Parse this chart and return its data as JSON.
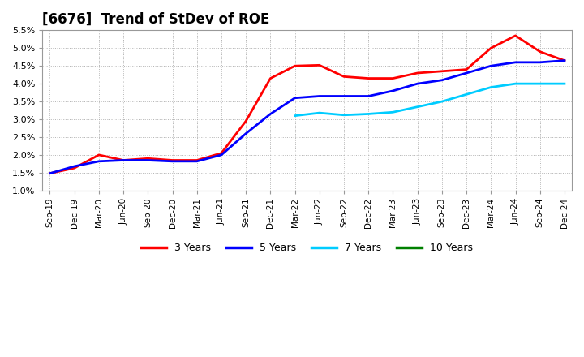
{
  "title": "[6676]  Trend of StDev of ROE",
  "title_fontsize": 12,
  "ylim": [
    0.01,
    0.055
  ],
  "yticks": [
    0.01,
    0.015,
    0.02,
    0.025,
    0.03,
    0.035,
    0.04,
    0.045,
    0.05,
    0.055
  ],
  "ytick_labels": [
    "1.0%",
    "1.5%",
    "2.0%",
    "2.5%",
    "3.0%",
    "3.5%",
    "4.0%",
    "4.5%",
    "5.0%",
    "5.5%"
  ],
  "background_color": "#ffffff",
  "plot_bg_color": "#ffffff",
  "grid_color": "#aaaaaa",
  "xtick_labels": [
    "Sep-19",
    "Dec-19",
    "Mar-20",
    "Jun-20",
    "Sep-20",
    "Dec-20",
    "Mar-21",
    "Jun-21",
    "Sep-21",
    "Dec-21",
    "Mar-22",
    "Jun-22",
    "Sep-22",
    "Dec-22",
    "Mar-23",
    "Jun-23",
    "Sep-23",
    "Dec-23",
    "Mar-24",
    "Jun-24",
    "Sep-24",
    "Dec-24"
  ],
  "series": {
    "3 Years": {
      "color": "#ff0000",
      "xi": [
        0,
        1,
        2,
        3,
        4,
        5,
        6,
        7,
        8,
        9,
        10,
        11,
        12,
        13,
        14,
        15,
        16,
        17,
        18,
        19,
        20,
        21
      ],
      "values": [
        0.0148,
        0.0163,
        0.02,
        0.0185,
        0.019,
        0.0185,
        0.0185,
        0.0205,
        0.0295,
        0.0415,
        0.045,
        0.0452,
        0.042,
        0.0415,
        0.0415,
        0.043,
        0.0435,
        0.044,
        0.05,
        0.0535,
        0.049,
        0.0465
      ]
    },
    "5 Years": {
      "color": "#0000ff",
      "xi": [
        0,
        1,
        2,
        3,
        4,
        5,
        6,
        7,
        8,
        9,
        10,
        11,
        12,
        13,
        14,
        15,
        16,
        17,
        18,
        19,
        20,
        21
      ],
      "values": [
        0.0148,
        0.0168,
        0.0182,
        0.0185,
        0.0185,
        0.0182,
        0.0182,
        0.02,
        0.026,
        0.0315,
        0.036,
        0.0365,
        0.0365,
        0.0365,
        0.038,
        0.04,
        0.041,
        0.043,
        0.045,
        0.046,
        0.046,
        0.0465
      ]
    },
    "7 Years": {
      "color": "#00ccff",
      "xi": [
        10,
        11,
        12,
        13,
        14,
        15,
        16,
        17,
        18,
        19,
        20,
        21
      ],
      "values": [
        0.031,
        0.0318,
        0.0312,
        0.0315,
        0.032,
        0.0335,
        0.035,
        0.037,
        0.039,
        0.04,
        0.04,
        0.04
      ]
    },
    "10 Years": {
      "color": "#008000",
      "xi": [],
      "values": []
    }
  },
  "legend_labels": [
    "3 Years",
    "5 Years",
    "7 Years",
    "10 Years"
  ],
  "legend_colors": [
    "#ff0000",
    "#0000ff",
    "#00ccff",
    "#008000"
  ]
}
